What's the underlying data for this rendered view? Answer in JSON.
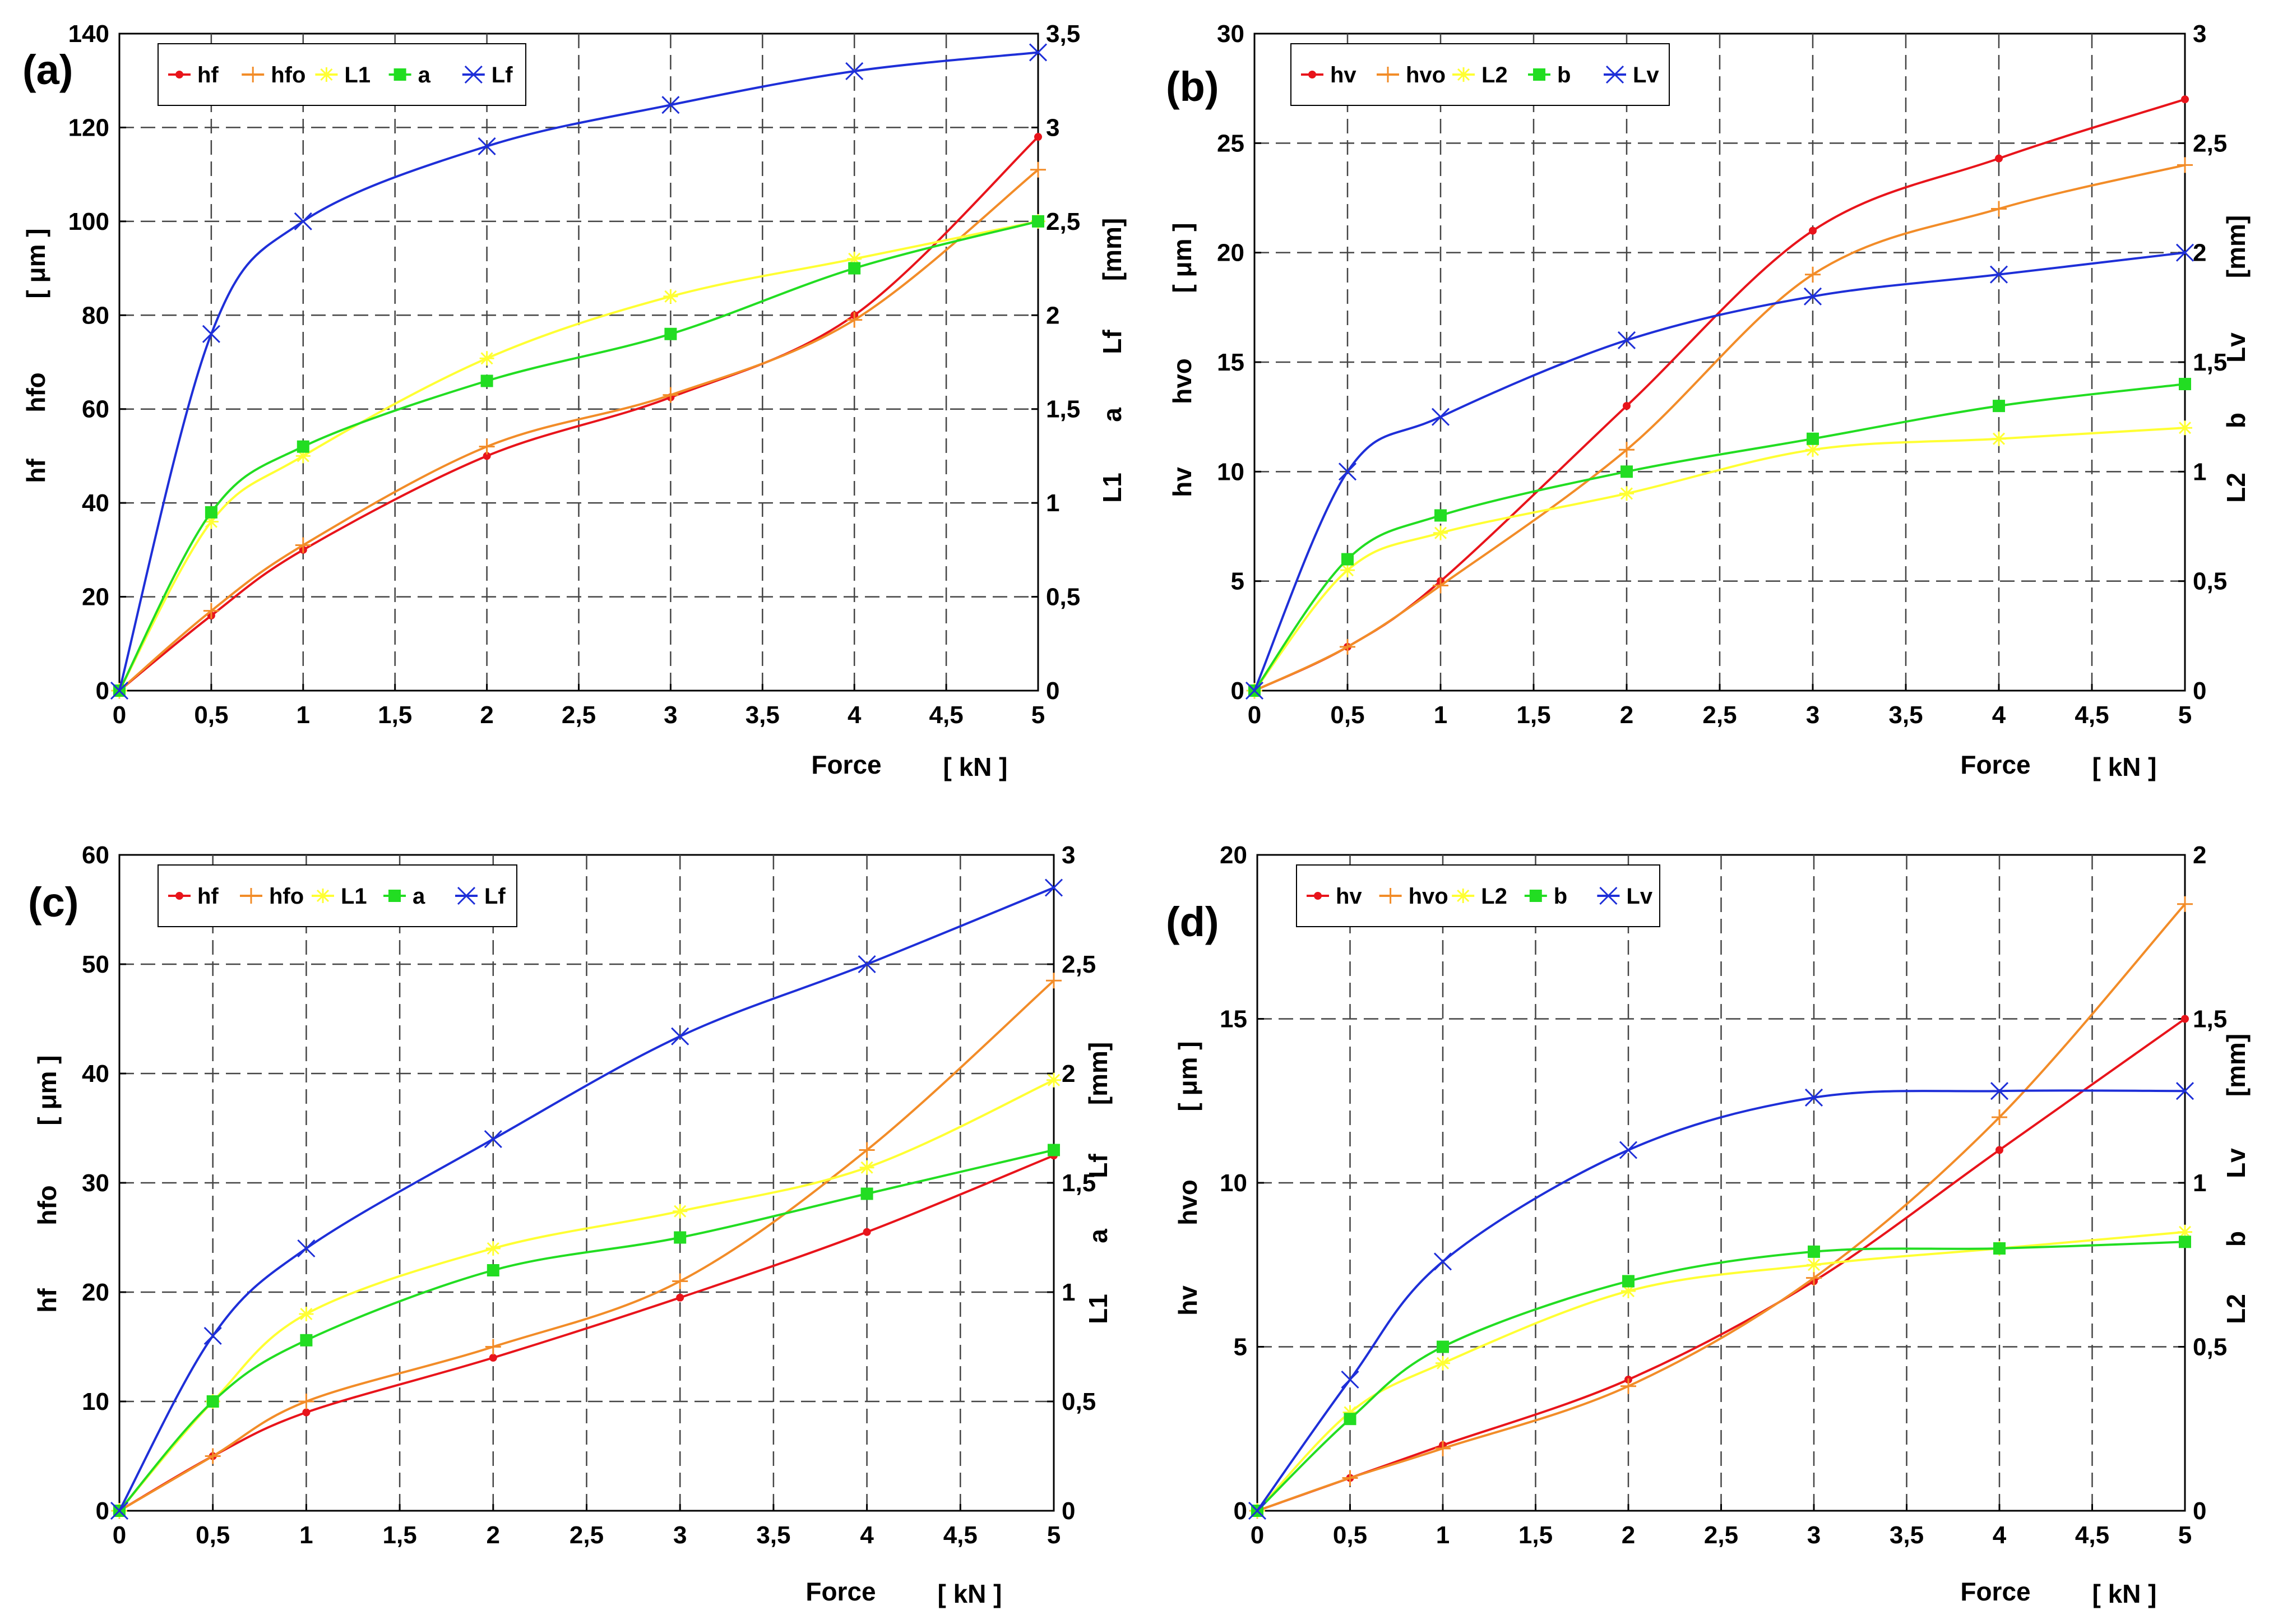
{
  "chart_data": [
    {
      "type": "line",
      "panel": "(a)",
      "x": [
        0,
        0.5,
        1,
        2,
        3,
        4,
        5
      ],
      "x_ticks": [
        "0",
        "0,5",
        "1",
        "1,5",
        "2",
        "2,5",
        "3",
        "3,5",
        "4",
        "4,5",
        "5"
      ],
      "xlim": [
        0,
        5
      ],
      "xlabel": "Force",
      "xunit": "[ kN ]",
      "ylim_left": [
        0,
        140
      ],
      "y_left_ticks": [
        "0",
        "20",
        "40",
        "60",
        "80",
        "100",
        "120",
        "140"
      ],
      "ylabel_left": [
        "hf",
        "hfo",
        "[ μm ]"
      ],
      "ylim_right": [
        0,
        3.5
      ],
      "y_right_ticks": [
        "0",
        "0,5",
        "1",
        "1,5",
        "2",
        "2,5",
        "3",
        "3,5"
      ],
      "ylabel_right": [
        "L1",
        "a",
        "Lf",
        "[mm]"
      ],
      "series": [
        {
          "name": "hf",
          "axis": "left",
          "color": "#e8141b",
          "marker": "dot",
          "values": [
            0,
            16,
            30,
            50,
            62.5,
            80,
            118
          ]
        },
        {
          "name": "hfo",
          "axis": "left",
          "color": "#f28c28",
          "marker": "plus",
          "values": [
            0,
            17,
            31,
            52,
            63,
            79,
            111
          ]
        },
        {
          "name": "L1",
          "axis": "right",
          "color": "#ffff33",
          "marker": "star",
          "values": [
            0,
            0.9,
            1.25,
            1.77,
            2.1,
            2.3,
            2.5
          ]
        },
        {
          "name": "a",
          "axis": "right",
          "color": "#22dd22",
          "marker": "square",
          "values": [
            0,
            0.95,
            1.3,
            1.65,
            1.9,
            2.25,
            2.5
          ]
        },
        {
          "name": "Lf",
          "axis": "right",
          "color": "#1e2fd8",
          "marker": "x",
          "values": [
            0,
            1.9,
            2.5,
            2.9,
            3.12,
            3.3,
            3.4
          ]
        }
      ]
    },
    {
      "type": "line",
      "panel": "(b)",
      "x": [
        0,
        0.5,
        1,
        2,
        3,
        4,
        5
      ],
      "x_ticks": [
        "0",
        "0,5",
        "1",
        "1,5",
        "2",
        "2,5",
        "3",
        "3,5",
        "4",
        "4,5",
        "5"
      ],
      "xlim": [
        0,
        5
      ],
      "xlabel": "Force",
      "xunit": "[ kN ]",
      "ylim_left": [
        0,
        30
      ],
      "y_left_ticks": [
        "0",
        "5",
        "10",
        "15",
        "20",
        "25",
        "30"
      ],
      "ylabel_left": [
        "hv",
        "hvo",
        "[ μm ]"
      ],
      "ylim_right": [
        0,
        3
      ],
      "y_right_ticks": [
        "0",
        "0,5",
        "1",
        "1,5",
        "2",
        "2,5",
        "3"
      ],
      "ylabel_right": [
        "L2",
        "b",
        "Lv",
        "[mm]"
      ],
      "series": [
        {
          "name": "hv",
          "axis": "left",
          "color": "#e8141b",
          "marker": "dot",
          "values": [
            0,
            2,
            5,
            13,
            21,
            24.3,
            27
          ]
        },
        {
          "name": "hvo",
          "axis": "left",
          "color": "#f28c28",
          "marker": "plus",
          "values": [
            0,
            2,
            4.8,
            11,
            19,
            22,
            24
          ]
        },
        {
          "name": "L2",
          "axis": "right",
          "color": "#ffff33",
          "marker": "star",
          "values": [
            0,
            0.55,
            0.72,
            0.9,
            1.1,
            1.15,
            1.2
          ]
        },
        {
          "name": "b",
          "axis": "right",
          "color": "#22dd22",
          "marker": "square",
          "values": [
            0,
            0.6,
            0.8,
            1.0,
            1.15,
            1.3,
            1.4
          ]
        },
        {
          "name": "Lv",
          "axis": "right",
          "color": "#1e2fd8",
          "marker": "x",
          "values": [
            0,
            1.0,
            1.25,
            1.6,
            1.8,
            1.9,
            2.0
          ]
        }
      ]
    },
    {
      "type": "line",
      "panel": "(c)",
      "x": [
        0,
        0.5,
        1,
        2,
        3,
        4,
        5
      ],
      "x_ticks": [
        "0",
        "0,5",
        "1",
        "1,5",
        "2",
        "2,5",
        "3",
        "3,5",
        "4",
        "4,5",
        "5"
      ],
      "xlim": [
        0,
        5
      ],
      "xlabel": "Force",
      "xunit": "[ kN ]",
      "ylim_left": [
        0,
        60
      ],
      "y_left_ticks": [
        "0",
        "10",
        "20",
        "30",
        "40",
        "50",
        "60"
      ],
      "ylabel_left": [
        "hf",
        "hfo",
        "[ μm ]"
      ],
      "ylim_right": [
        0,
        3
      ],
      "y_right_ticks": [
        "0",
        "0,5",
        "1",
        "1,5",
        "2",
        "2,5",
        "3"
      ],
      "ylabel_right": [
        "L1",
        "a",
        "Lf",
        "[mm]"
      ],
      "series": [
        {
          "name": "hf",
          "axis": "left",
          "color": "#e8141b",
          "marker": "dot",
          "values": [
            0,
            5,
            9,
            14,
            19.5,
            25.5,
            32.5
          ]
        },
        {
          "name": "hfo",
          "axis": "left",
          "color": "#f28c28",
          "marker": "plus",
          "values": [
            0,
            5,
            10,
            15,
            21,
            33,
            48.5
          ]
        },
        {
          "name": "L1",
          "axis": "right",
          "color": "#ffff33",
          "marker": "star",
          "values": [
            0,
            0.5,
            0.9,
            1.2,
            1.37,
            1.57,
            1.97
          ]
        },
        {
          "name": "a",
          "axis": "right",
          "color": "#22dd22",
          "marker": "square",
          "values": [
            0,
            0.5,
            0.78,
            1.1,
            1.25,
            1.45,
            1.65
          ]
        },
        {
          "name": "Lf",
          "axis": "right",
          "color": "#1e2fd8",
          "marker": "x",
          "values": [
            0,
            0.8,
            1.2,
            1.7,
            2.17,
            2.5,
            2.85
          ]
        }
      ]
    },
    {
      "type": "line",
      "panel": "(d)",
      "x": [
        0,
        0.5,
        1,
        2,
        3,
        4,
        5
      ],
      "x_ticks": [
        "0",
        "0,5",
        "1",
        "1,5",
        "2",
        "2,5",
        "3",
        "3,5",
        "4",
        "4,5",
        "5"
      ],
      "xlim": [
        0,
        5
      ],
      "xlabel": "Force",
      "xunit": "[ kN ]",
      "ylim_left": [
        0,
        20
      ],
      "y_left_ticks": [
        "0",
        "5",
        "10",
        "15",
        "20"
      ],
      "ylabel_left": [
        "hv",
        "hvo",
        "[ μm ]"
      ],
      "ylim_right": [
        0,
        2
      ],
      "y_right_ticks": [
        "0",
        "0,5",
        "1",
        "1,5",
        "2"
      ],
      "ylabel_right": [
        "L2",
        "b",
        "Lv",
        "[mm]"
      ],
      "series": [
        {
          "name": "hv",
          "axis": "left",
          "color": "#e8141b",
          "marker": "dot",
          "values": [
            0,
            1,
            2,
            4,
            7,
            11,
            15
          ]
        },
        {
          "name": "hvo",
          "axis": "left",
          "color": "#f28c28",
          "marker": "plus",
          "values": [
            0,
            1,
            1.9,
            3.8,
            7.1,
            12,
            18.5
          ]
        },
        {
          "name": "L2",
          "axis": "right",
          "color": "#ffff33",
          "marker": "star",
          "values": [
            0,
            0.3,
            0.45,
            0.67,
            0.75,
            0.8,
            0.85
          ]
        },
        {
          "name": "b",
          "axis": "right",
          "color": "#22dd22",
          "marker": "square",
          "values": [
            0,
            0.28,
            0.5,
            0.7,
            0.79,
            0.8,
            0.82
          ]
        },
        {
          "name": "Lv",
          "axis": "right",
          "color": "#1e2fd8",
          "marker": "x",
          "values": [
            0,
            0.4,
            0.76,
            1.1,
            1.26,
            1.28,
            1.28
          ]
        }
      ]
    }
  ]
}
